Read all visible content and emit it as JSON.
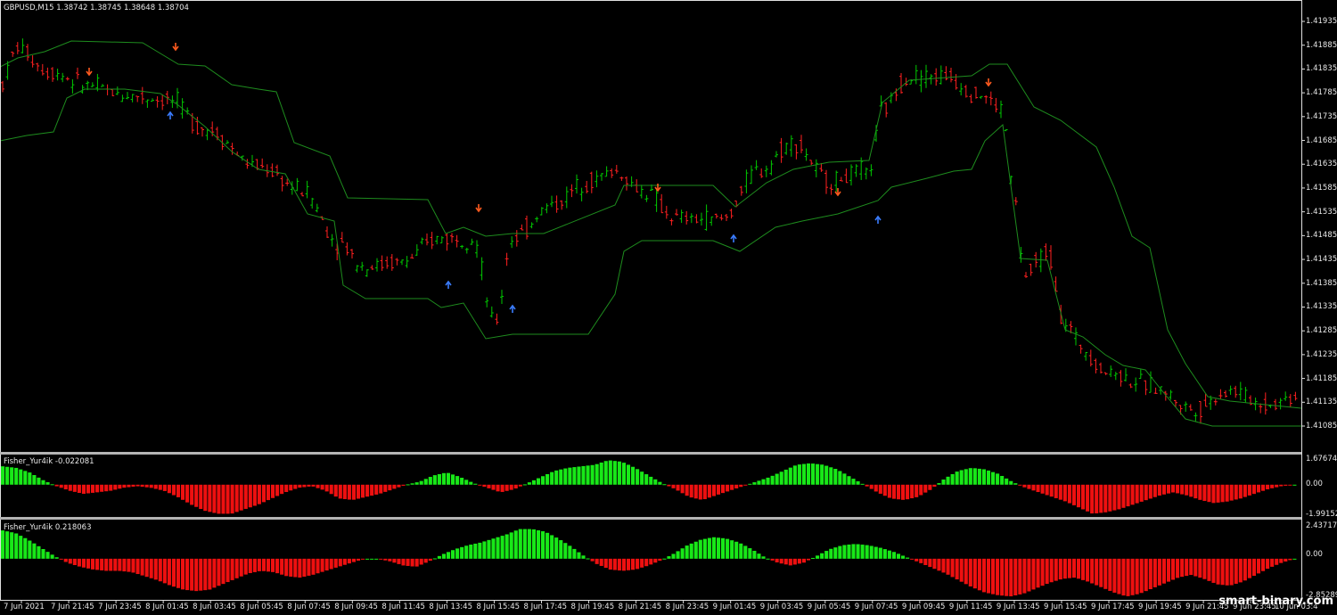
{
  "main_panel": {
    "symbol_header": "GBPUSD,M15  1.38742 1.38745 1.38648 1.38704",
    "price_labels": [
      "1.41935",
      "1.41885",
      "1.41835",
      "1.41785",
      "1.41735",
      "1.41685",
      "1.41635",
      "1.41585",
      "1.41535",
      "1.41485",
      "1.41435",
      "1.41385",
      "1.41335",
      "1.41285",
      "1.41235",
      "1.41185",
      "1.41135",
      "1.41085"
    ]
  },
  "indicator_1": {
    "header": "Fisher_Yur4ik -0.022081",
    "labels": [
      "1.676743",
      "0.00",
      "-1.991527"
    ]
  },
  "indicator_2": {
    "header": "Fisher_Yur4ik 0.218063",
    "labels": [
      "2.437174",
      "0.00",
      "-2.85289"
    ]
  },
  "time_labels": [
    "7 Jun 2021",
    "7 Jun 21:45",
    "7 Jun 23:45",
    "8 Jun 01:45",
    "8 Jun 03:45",
    "8 Jun 05:45",
    "8 Jun 07:45",
    "8 Jun 09:45",
    "8 Jun 11:45",
    "8 Jun 13:45",
    "8 Jun 15:45",
    "8 Jun 17:45",
    "8 Jun 19:45",
    "8 Jun 21:45",
    "8 Jun 23:45",
    "9 Jun 01:45",
    "9 Jun 03:45",
    "9 Jun 05:45",
    "9 Jun 07:45",
    "9 Jun 09:45",
    "9 Jun 11:45",
    "9 Jun 13:45",
    "9 Jun 15:45",
    "9 Jun 17:45",
    "9 Jun 19:45",
    "9 Jun 21:45",
    "9 Jun 23:45",
    "10 Jun 03:4"
  ],
  "watermark": "smart-binary.com",
  "colors": {
    "background": "#000000",
    "bull_bar": "#00c800",
    "bear_bar": "#ff2020",
    "channel_line": "#1e8c1e",
    "up_arrow": "#3a7cff",
    "down_arrow": "#ff5a1e",
    "histogram_positive": "#18e818",
    "histogram_negative": "#ee1010",
    "panel_separator": "#b4b4b4"
  },
  "chart_data": {
    "type": "candlestick_with_indicators",
    "symbol": "GBPUSD",
    "timeframe": "M15",
    "ohlc_header": {
      "open": 1.38742,
      "high": 1.38745,
      "low": 1.38648,
      "close": 1.38704
    },
    "price_axis": {
      "min": 1.41085,
      "max": 1.41935
    },
    "fisher_1": {
      "value": -0.022081,
      "range": [
        -1.991527,
        1.676743
      ],
      "profile": [
        1.2,
        1.1,
        0.8,
        0.3,
        -0.1,
        -0.4,
        -0.6,
        -0.5,
        -0.4,
        -0.2,
        -0.1,
        -0.2,
        -0.4,
        -0.8,
        -1.3,
        -1.7,
        -1.9,
        -1.9,
        -1.6,
        -1.3,
        -0.9,
        -0.5,
        -0.2,
        -0.1,
        -0.4,
        -0.9,
        -1.0,
        -0.8,
        -0.6,
        -0.3,
        0.0,
        0.2,
        0.6,
        0.8,
        0.5,
        0.1,
        -0.2,
        -0.5,
        -0.3,
        0.1,
        0.5,
        0.9,
        1.1,
        1.2,
        1.3,
        1.6,
        1.5,
        1.1,
        0.6,
        0.1,
        -0.3,
        -0.8,
        -1.0,
        -0.7,
        -0.4,
        -0.1,
        0.2,
        0.5,
        0.9,
        1.3,
        1.4,
        1.3,
        1.0,
        0.5,
        0.0,
        -0.5,
        -0.9,
        -1.0,
        -0.8,
        -0.3,
        0.4,
        0.9,
        1.1,
        1.0,
        0.7,
        0.2,
        -0.2,
        -0.5,
        -0.8,
        -1.1,
        -1.5,
        -1.9,
        -1.8,
        -1.6,
        -1.3,
        -1.0,
        -0.7,
        -0.5,
        -0.7,
        -1.0,
        -1.2,
        -1.1,
        -0.9,
        -0.6,
        -0.3,
        -0.1,
        0.0
      ]
    },
    "fisher_2": {
      "value": 0.218063,
      "range": [
        -2.85289,
        2.437174
      ],
      "profile": [
        2.1,
        1.9,
        1.4,
        0.8,
        0.2,
        -0.3,
        -0.6,
        -0.8,
        -0.9,
        -0.9,
        -1.0,
        -1.3,
        -1.6,
        -2.0,
        -2.3,
        -2.4,
        -2.3,
        -1.9,
        -1.5,
        -1.1,
        -0.9,
        -1.0,
        -1.3,
        -1.4,
        -1.2,
        -0.9,
        -0.6,
        -0.3,
        0.0,
        0.0,
        -0.2,
        -0.5,
        -0.6,
        -0.2,
        0.3,
        0.7,
        1.0,
        1.2,
        1.5,
        1.8,
        2.2,
        2.2,
        2.0,
        1.5,
        0.9,
        0.2,
        -0.4,
        -0.8,
        -0.9,
        -0.8,
        -0.5,
        -0.1,
        0.4,
        1.0,
        1.4,
        1.6,
        1.5,
        1.2,
        0.7,
        0.1,
        -0.3,
        -0.5,
        -0.3,
        0.2,
        0.7,
        1.0,
        1.1,
        1.0,
        0.8,
        0.5,
        0.1,
        -0.3,
        -0.7,
        -1.1,
        -1.6,
        -2.1,
        -2.5,
        -2.7,
        -2.8,
        -2.6,
        -2.2,
        -1.8,
        -1.5,
        -1.4,
        -1.7,
        -2.1,
        -2.5,
        -2.8,
        -2.6,
        -2.2,
        -1.8,
        -1.4,
        -1.2,
        -1.5,
        -1.9,
        -2.0,
        -1.7,
        -1.2,
        -0.7,
        -0.3,
        0.0
      ]
    }
  }
}
